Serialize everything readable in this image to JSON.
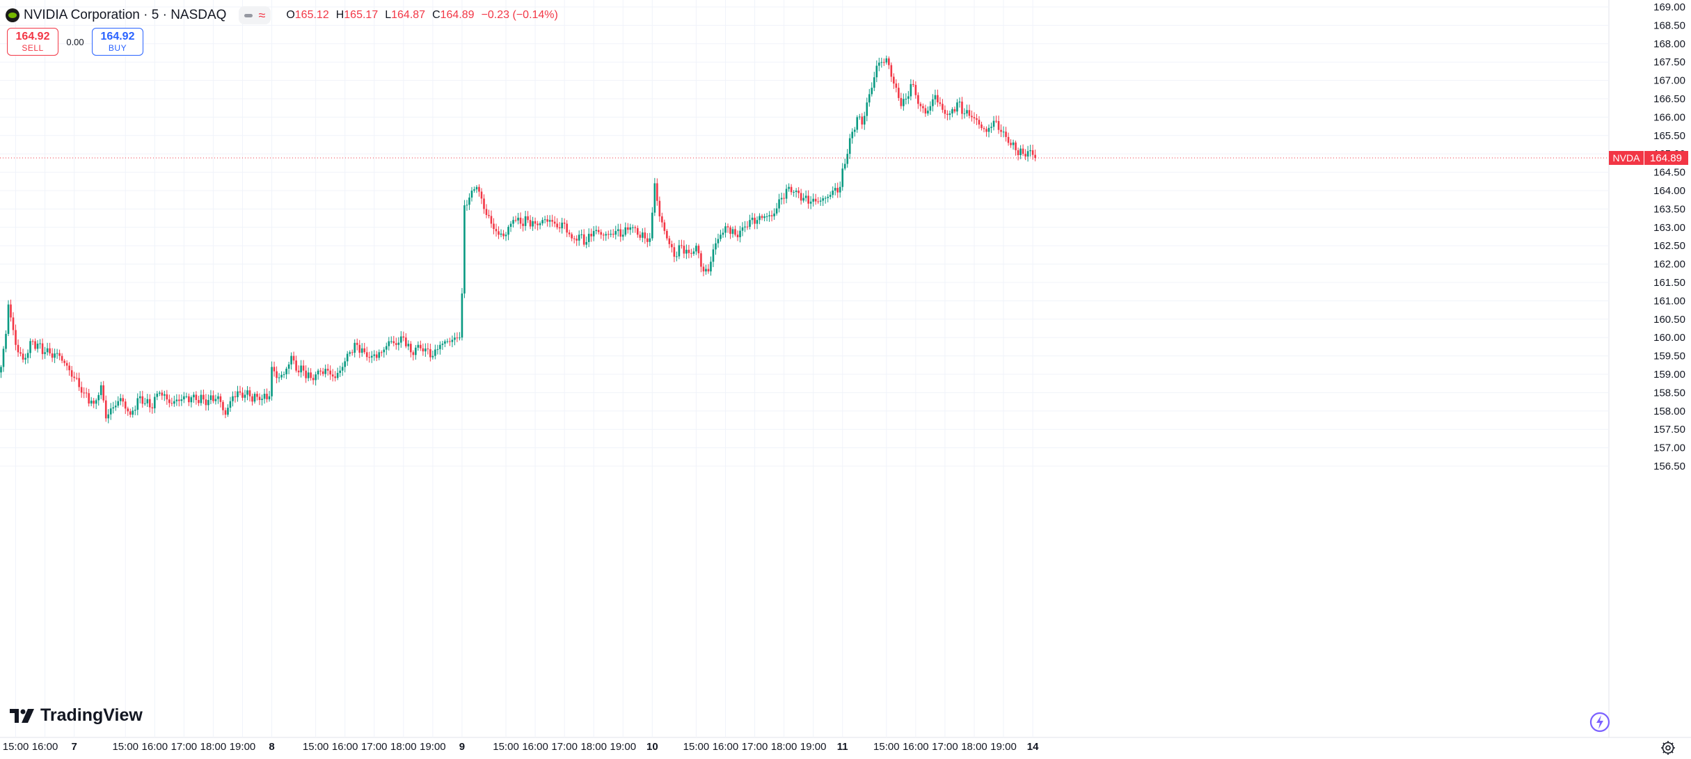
{
  "header": {
    "symbol_title": "NVIDIA Corporation · 5 · NASDAQ",
    "open_label": "O",
    "open": "165.12",
    "high_label": "H",
    "high": "165.17",
    "low_label": "L",
    "low": "164.87",
    "close_label": "C",
    "close": "164.89",
    "change": "−0.23 (−0.14%)"
  },
  "trade": {
    "sell_price": "164.92",
    "sell_label": "SELL",
    "spread": "0.00",
    "buy_price": "164.92",
    "buy_label": "BUY"
  },
  "branding": {
    "logo_text": "TradingView"
  },
  "colors": {
    "up": "#089981",
    "down": "#f23645",
    "grid": "#f0f3fa",
    "text": "#131722",
    "brand_icon": "#76b900"
  },
  "icons": [
    "nvidia-logo-icon",
    "visibility-icon",
    "indicators-icon",
    "tradingview-logo-icon",
    "lightning-icon",
    "settings-icon"
  ],
  "chart_data": {
    "type": "candlestick",
    "title": "NVIDIA Corporation · 5 · NASDAQ",
    "interval": "5",
    "y_axis": {
      "side": "right",
      "ylim": [
        156.25,
        169.1
      ],
      "ticks": [
        "156.50",
        "157.00",
        "157.50",
        "158.00",
        "158.50",
        "159.00",
        "159.50",
        "160.00",
        "160.50",
        "161.00",
        "161.50",
        "162.00",
        "162.50",
        "163.00",
        "163.50",
        "164.00",
        "164.50",
        "165.00",
        "165.50",
        "166.00",
        "166.50",
        "167.00",
        "167.50",
        "168.00",
        "168.50",
        "169.00"
      ]
    },
    "x_axis": {
      "ticks": [
        {
          "label": "15:00",
          "bar": 6
        },
        {
          "label": "16:00",
          "bar": 18
        },
        {
          "label": "7",
          "bar": 30,
          "bold": true
        },
        {
          "label": "15:00",
          "bar": 51
        },
        {
          "label": "16:00",
          "bar": 63
        },
        {
          "label": "17:00",
          "bar": 75
        },
        {
          "label": "18:00",
          "bar": 87
        },
        {
          "label": "19:00",
          "bar": 99
        },
        {
          "label": "8",
          "bar": 111,
          "bold": true
        },
        {
          "label": "15:00",
          "bar": 129
        },
        {
          "label": "16:00",
          "bar": 141
        },
        {
          "label": "17:00",
          "bar": 153
        },
        {
          "label": "18:00",
          "bar": 165
        },
        {
          "label": "19:00",
          "bar": 177
        },
        {
          "label": "9",
          "bar": 189,
          "bold": true
        },
        {
          "label": "15:00",
          "bar": 207
        },
        {
          "label": "16:00",
          "bar": 219
        },
        {
          "label": "17:00",
          "bar": 231
        },
        {
          "label": "18:00",
          "bar": 243
        },
        {
          "label": "19:00",
          "bar": 255
        },
        {
          "label": "10",
          "bar": 267,
          "bold": true
        },
        {
          "label": "15:00",
          "bar": 285
        },
        {
          "label": "16:00",
          "bar": 297
        },
        {
          "label": "17:00",
          "bar": 309
        },
        {
          "label": "18:00",
          "bar": 321
        },
        {
          "label": "19:00",
          "bar": 333
        },
        {
          "label": "11",
          "bar": 345,
          "bold": true
        },
        {
          "label": "15:00",
          "bar": 363
        },
        {
          "label": "16:00",
          "bar": 375
        },
        {
          "label": "17:00",
          "bar": 387
        },
        {
          "label": "18:00",
          "bar": 399
        },
        {
          "label": "19:00",
          "bar": 411
        },
        {
          "label": "14",
          "bar": 423,
          "bold": true
        }
      ]
    },
    "last_price": {
      "symbol": "NVDA",
      "value": 164.89,
      "label": "164.89"
    },
    "anchors": [
      [
        0,
        159.2
      ],
      [
        2,
        160.1
      ],
      [
        3,
        160.9
      ],
      [
        6,
        159.8
      ],
      [
        9,
        159.4
      ],
      [
        13,
        159.9
      ],
      [
        18,
        159.6
      ],
      [
        24,
        159.5
      ],
      [
        30,
        158.9
      ],
      [
        34,
        158.5
      ],
      [
        38,
        158.2
      ],
      [
        41,
        158.7
      ],
      [
        43,
        157.8
      ],
      [
        46,
        158.1
      ],
      [
        49,
        158.35
      ],
      [
        53,
        157.9
      ],
      [
        57,
        158.4
      ],
      [
        61,
        158.1
      ],
      [
        65,
        158.5
      ],
      [
        70,
        158.2
      ],
      [
        75,
        158.4
      ],
      [
        80,
        158.3
      ],
      [
        85,
        158.3
      ],
      [
        89,
        158.4
      ],
      [
        92,
        157.9
      ],
      [
        95,
        158.4
      ],
      [
        98,
        158.5
      ],
      [
        102,
        158.4
      ],
      [
        106,
        158.3
      ],
      [
        110,
        158.4
      ],
      [
        111,
        159.2
      ],
      [
        113,
        158.9
      ],
      [
        116,
        159.0
      ],
      [
        119,
        159.5
      ],
      [
        121,
        159.1
      ],
      [
        124,
        159.1
      ],
      [
        127,
        158.9
      ],
      [
        130,
        159.1
      ],
      [
        134,
        159.1
      ],
      [
        137,
        158.9
      ],
      [
        140,
        159.2
      ],
      [
        143,
        159.6
      ],
      [
        146,
        159.8
      ],
      [
        149,
        159.6
      ],
      [
        152,
        159.5
      ],
      [
        156,
        159.6
      ],
      [
        159,
        159.9
      ],
      [
        162,
        159.8
      ],
      [
        165,
        160.0
      ],
      [
        168,
        159.6
      ],
      [
        171,
        159.8
      ],
      [
        174,
        159.7
      ],
      [
        177,
        159.5
      ],
      [
        180,
        159.8
      ],
      [
        183,
        159.9
      ],
      [
        186,
        160.0
      ],
      [
        188,
        160.0
      ],
      [
        189,
        161.2
      ],
      [
        190,
        163.6
      ],
      [
        193,
        164.0
      ],
      [
        195,
        164.1
      ],
      [
        198,
        163.5
      ],
      [
        201,
        163.1
      ],
      [
        204,
        162.8
      ],
      [
        207,
        162.8
      ],
      [
        210,
        163.2
      ],
      [
        213,
        163.1
      ],
      [
        216,
        163.2
      ],
      [
        219,
        163.1
      ],
      [
        222,
        163.2
      ],
      [
        225,
        163.2
      ],
      [
        228,
        163.0
      ],
      [
        231,
        163.1
      ],
      [
        234,
        162.7
      ],
      [
        237,
        162.8
      ],
      [
        240,
        162.6
      ],
      [
        243,
        162.9
      ],
      [
        246,
        162.8
      ],
      [
        249,
        162.8
      ],
      [
        252,
        162.9
      ],
      [
        255,
        162.8
      ],
      [
        258,
        163.0
      ],
      [
        261,
        162.8
      ],
      [
        264,
        162.7
      ],
      [
        266,
        162.7
      ],
      [
        267,
        163.4
      ],
      [
        268,
        164.2
      ],
      [
        270,
        163.3
      ],
      [
        273,
        162.7
      ],
      [
        276,
        162.2
      ],
      [
        279,
        162.5
      ],
      [
        282,
        162.3
      ],
      [
        285,
        162.5
      ],
      [
        288,
        161.8
      ],
      [
        290,
        161.8
      ],
      [
        292,
        162.4
      ],
      [
        295,
        162.8
      ],
      [
        298,
        163.0
      ],
      [
        301,
        162.8
      ],
      [
        304,
        163.0
      ],
      [
        307,
        163.2
      ],
      [
        310,
        163.2
      ],
      [
        313,
        163.3
      ],
      [
        316,
        163.3
      ],
      [
        320,
        163.8
      ],
      [
        323,
        164.1
      ],
      [
        326,
        164.0
      ],
      [
        329,
        163.8
      ],
      [
        332,
        163.7
      ],
      [
        335,
        163.7
      ],
      [
        338,
        163.8
      ],
      [
        341,
        164.0
      ],
      [
        344,
        164.1
      ],
      [
        345,
        164.6
      ],
      [
        347,
        165.0
      ],
      [
        349,
        165.6
      ],
      [
        351,
        166.0
      ],
      [
        353,
        165.8
      ],
      [
        355,
        166.4
      ],
      [
        357,
        166.8
      ],
      [
        359,
        167.4
      ],
      [
        361,
        167.5
      ],
      [
        363,
        167.6
      ],
      [
        365,
        167.1
      ],
      [
        367,
        166.8
      ],
      [
        369,
        166.3
      ],
      [
        371,
        166.5
      ],
      [
        373,
        166.9
      ],
      [
        375,
        166.6
      ],
      [
        377,
        166.3
      ],
      [
        379,
        166.1
      ],
      [
        381,
        166.3
      ],
      [
        383,
        166.6
      ],
      [
        386,
        166.2
      ],
      [
        389,
        166.1
      ],
      [
        392,
        166.4
      ],
      [
        395,
        166.1
      ],
      [
        398,
        166.0
      ],
      [
        401,
        165.8
      ],
      [
        404,
        165.6
      ],
      [
        407,
        165.9
      ],
      [
        410,
        165.6
      ],
      [
        413,
        165.3
      ],
      [
        416,
        165.1
      ],
      [
        419,
        165.0
      ],
      [
        422,
        165.1
      ],
      [
        424,
        164.89
      ]
    ]
  }
}
